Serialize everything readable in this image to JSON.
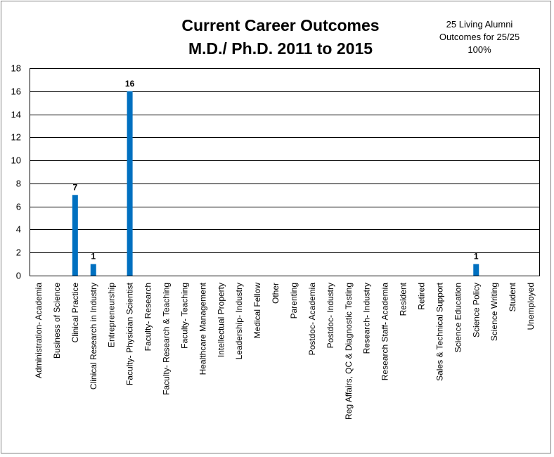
{
  "chart_data": {
    "type": "bar",
    "title": [
      "Current Career Outcomes",
      "M.D./ Ph.D. 2011 to 2015"
    ],
    "annotation": [
      "25 Living Alumni",
      "Outcomes for 25/25",
      "100%"
    ],
    "xlabel": "",
    "ylabel": "",
    "ylim": [
      0,
      18
    ],
    "yticks": [
      0,
      2,
      4,
      6,
      8,
      10,
      12,
      14,
      16,
      18
    ],
    "grid": true,
    "legend": "none",
    "bar_color": "#0070C0",
    "categories": [
      "Administration- Academia",
      "Business of Science",
      "Clinical Practice",
      "Clinical Research in Industry",
      "Entrepreneurship",
      "Faculty- Physician Scientist",
      "Faculty- Research",
      "Faculty- Research & Teaching",
      "Faculty- Teaching",
      "Healthcare Management",
      "Intellectual Property",
      "Leadership- Industry",
      "Medical Fellow",
      "Other",
      "Parenting",
      "Postdoc- Academia",
      "Postdoc- Industry",
      "Reg Affairs, QC & Diagnostic Testing",
      "Research- Industry",
      "Research Staff- Academia",
      "Resident",
      "Retired",
      "Sales & Technical Support",
      "Science Education",
      "Science Policy",
      "Science Writing",
      "Student",
      "Unemployed"
    ],
    "values": [
      0,
      0,
      7,
      1,
      0,
      16,
      0,
      0,
      0,
      0,
      0,
      0,
      0,
      0,
      0,
      0,
      0,
      0,
      0,
      0,
      0,
      0,
      0,
      0,
      1,
      0,
      0,
      0
    ],
    "data_labels": [
      "",
      "",
      "7",
      "1",
      "",
      "16",
      "",
      "",
      "",
      "",
      "",
      "",
      "",
      "",
      "",
      "",
      "",
      "",
      "",
      "",
      "",
      "",
      "",
      "",
      "1",
      "",
      "",
      ""
    ]
  }
}
